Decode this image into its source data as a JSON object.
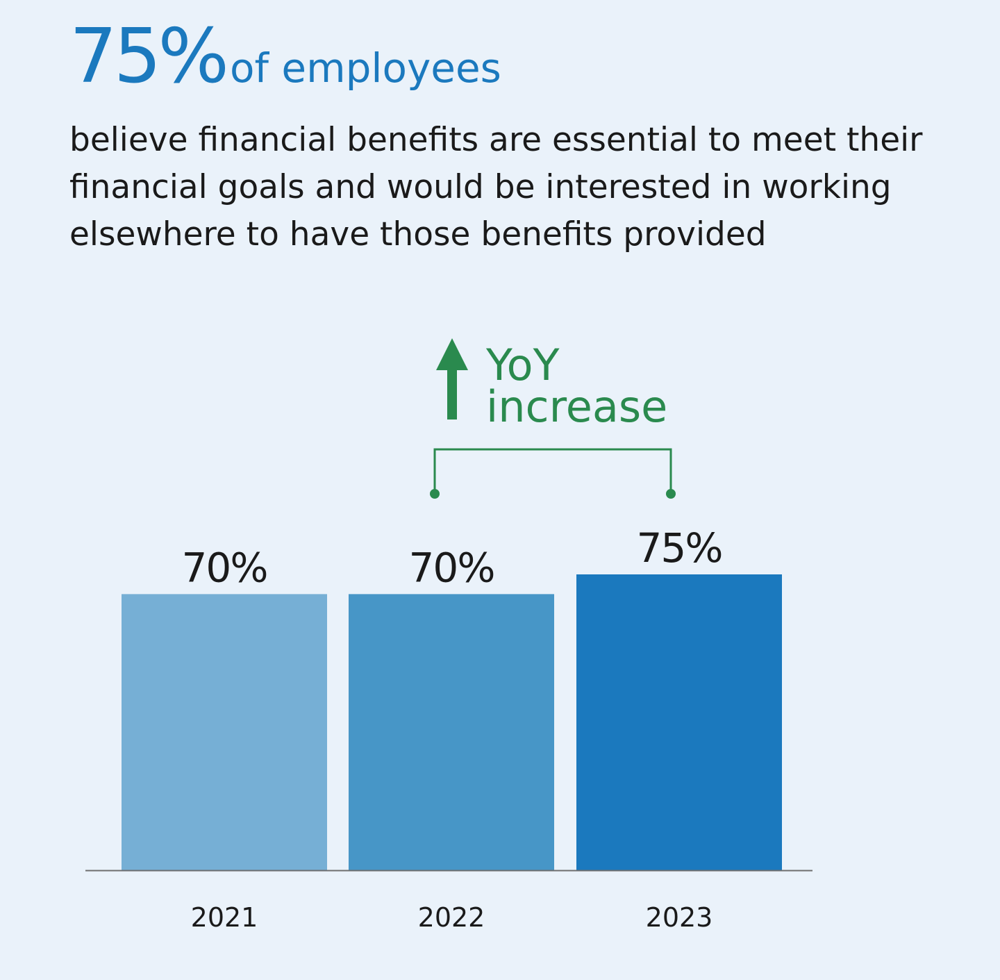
{
  "headline": {
    "big": "75%",
    "small": "of employees"
  },
  "subtitle": "believe financial benefits are essential to meet their financial goals and would be interested in working elsewhere to have those benefits provided",
  "annotation": {
    "line1": "YoY",
    "line2": "increase",
    "color": "#2a8a4e",
    "from_category": "2022",
    "to_category": "2023"
  },
  "chart_data": {
    "type": "bar",
    "categories": [
      "2021",
      "2022",
      "2023"
    ],
    "values": [
      70,
      70,
      75
    ],
    "data_labels": [
      "70%",
      "70%",
      "75%"
    ],
    "colors": [
      "#76afd5",
      "#4796c7",
      "#1b79be"
    ],
    "axis_color": "#6e6e6e",
    "ylim": [
      0,
      75
    ],
    "grid": false
  }
}
